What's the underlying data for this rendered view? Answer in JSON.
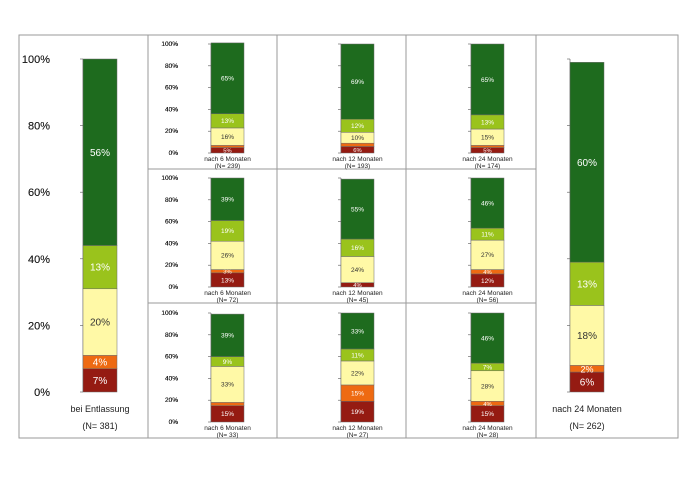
{
  "colors": {
    "dark_green": "#1e6b1e",
    "light_green": "#9ac31c",
    "pale_yellow": "#fff9a6",
    "orange": "#ee6a12",
    "dark_red": "#951b12"
  },
  "chart_data": [
    {
      "type": "bar",
      "stacked": true,
      "ylim": [
        0,
        100
      ],
      "y_ticks": [
        "0%",
        "20%",
        "40%",
        "60%",
        "80%",
        "100%"
      ],
      "categories": [
        "bei Entlassung"
      ],
      "n_label": "(N= 381)",
      "segments": [
        7,
        4,
        20,
        13,
        56
      ],
      "labels": [
        "7%",
        "4%",
        "20%",
        "13%",
        "56%"
      ]
    },
    {
      "type": "bar",
      "stacked": true,
      "ylim": [
        0,
        100
      ],
      "y_ticks": [
        "0%",
        "20%",
        "40%",
        "60%",
        "80%",
        "100%"
      ],
      "categories": [
        "nach 6 Monaten"
      ],
      "n_label": "(N= 239)",
      "segments": [
        5,
        2,
        16,
        13,
        65
      ],
      "labels": [
        "5%",
        "",
        "16%",
        "13%",
        "65%"
      ]
    },
    {
      "type": "bar",
      "stacked": true,
      "ylim": [
        0,
        100
      ],
      "y_ticks": [
        "0%",
        "20%",
        "40%",
        "60%",
        "80%",
        "100%"
      ],
      "categories": [
        "nach 12 Monaten"
      ],
      "n_label": "(N= 193)",
      "segments": [
        6,
        3,
        10,
        12,
        69
      ],
      "labels": [
        "6%",
        "",
        "10%",
        "12%",
        "69%"
      ]
    },
    {
      "type": "bar",
      "stacked": true,
      "ylim": [
        0,
        100
      ],
      "y_ticks": [
        "0%",
        "20%",
        "40%",
        "60%",
        "80%",
        "100%"
      ],
      "categories": [
        "nach 24 Monaten"
      ],
      "n_label": "(N= 174)",
      "segments": [
        5,
        2,
        15,
        13,
        65
      ],
      "labels": [
        "5%",
        "",
        "15%",
        "13%",
        "65%"
      ]
    },
    {
      "type": "bar",
      "stacked": true,
      "ylim": [
        0,
        100
      ],
      "y_ticks": [
        "0%",
        "20%",
        "40%",
        "60%",
        "80%",
        "100%"
      ],
      "categories": [
        "nach 6 Monaten"
      ],
      "n_label": "(N= 72)",
      "segments": [
        13,
        3,
        26,
        19,
        39
      ],
      "labels": [
        "13%",
        "3%",
        "26%",
        "19%",
        "39%"
      ]
    },
    {
      "type": "bar",
      "stacked": true,
      "ylim": [
        0,
        100
      ],
      "y_ticks": [
        "0%",
        "20%",
        "40%",
        "60%",
        "80%",
        "100%"
      ],
      "categories": [
        "nach 12 Monaten"
      ],
      "n_label": "(N= 45)",
      "segments": [
        4,
        0,
        24,
        16,
        55
      ],
      "labels": [
        "4%",
        "",
        "24%",
        "16%",
        "55%"
      ]
    },
    {
      "type": "bar",
      "stacked": true,
      "ylim": [
        0,
        100
      ],
      "y_ticks": [
        "0%",
        "20%",
        "40%",
        "60%",
        "80%",
        "100%"
      ],
      "categories": [
        "nach 24 Monaten"
      ],
      "n_label": "(N= 56)",
      "segments": [
        12,
        4,
        27,
        11,
        46
      ],
      "labels": [
        "12%",
        "4%",
        "27%",
        "11%",
        "46%"
      ]
    },
    {
      "type": "bar",
      "stacked": true,
      "ylim": [
        0,
        100
      ],
      "y_ticks": [
        "0%",
        "20%",
        "40%",
        "60%",
        "80%",
        "100%"
      ],
      "categories": [
        "nach 6 Monaten"
      ],
      "n_label": "(N= 33)",
      "segments": [
        15,
        3,
        33,
        9,
        39
      ],
      "labels": [
        "15%",
        "",
        "33%",
        "9%",
        "39%"
      ]
    },
    {
      "type": "bar",
      "stacked": true,
      "ylim": [
        0,
        100
      ],
      "y_ticks": [
        "0%",
        "20%",
        "40%",
        "60%",
        "80%",
        "100%"
      ],
      "categories": [
        "nach 12 Monaten"
      ],
      "n_label": "(N= 27)",
      "segments": [
        19,
        15,
        22,
        11,
        33
      ],
      "labels": [
        "19%",
        "15%",
        "22%",
        "11%",
        "33%"
      ]
    },
    {
      "type": "bar",
      "stacked": true,
      "ylim": [
        0,
        100
      ],
      "y_ticks": [
        "0%",
        "20%",
        "40%",
        "60%",
        "80%",
        "100%"
      ],
      "categories": [
        "nach 24 Monaten"
      ],
      "n_label": "(N= 28)",
      "segments": [
        15,
        4,
        28,
        7,
        46
      ],
      "labels": [
        "15%",
        "4%",
        "28%",
        "7%",
        "46%"
      ]
    },
    {
      "type": "bar",
      "stacked": true,
      "ylim": [
        0,
        100
      ],
      "y_ticks": [
        "0%",
        "20%",
        "40%",
        "60%",
        "80%",
        "100%"
      ],
      "categories": [
        "nach 24 Monaten"
      ],
      "n_label": "(N= 262)",
      "segments": [
        6,
        2,
        18,
        13,
        60
      ],
      "labels": [
        "6%",
        "2%",
        "18%",
        "13%",
        "60%"
      ]
    }
  ]
}
